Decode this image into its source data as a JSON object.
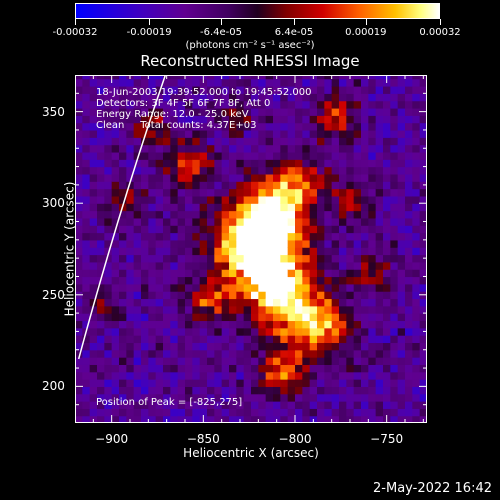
{
  "chart_data": {
    "type": "heatmap",
    "title": "Reconstructed RHESSI Image",
    "xlabel": "Heliocentric X (arcsec)",
    "ylabel": "Heliocentric Y (arcsec)",
    "xlim": [
      -920,
      -728
    ],
    "ylim": [
      180,
      370
    ],
    "x_ticks": [
      -900,
      -850,
      -800,
      -750
    ],
    "y_ticks": [
      200,
      250,
      300,
      350
    ],
    "colorbar": {
      "range": [
        -0.00032,
        0.00032
      ],
      "tick_values": [
        -0.00032,
        -0.00019,
        -6.4e-05,
        6.4e-05,
        0.00019,
        0.00032
      ],
      "tick_labels": [
        "-0.00032",
        "-0.00019",
        "-6.4e-05",
        "6.4e-05",
        "0.00019",
        "0.00032"
      ],
      "units": "(photons cm⁻² s⁻¹ asec⁻²)"
    },
    "peak_position": [
      -825,
      275
    ],
    "total_counts": 4370
  },
  "annotations": {
    "time_range": "18-Jun-2003 19:39:52.000 to 19:45:52.000",
    "detectors": "Detectors: 3F 4F 5F 6F 7F 8F, Att 0",
    "energy_range": "Energy Range: 12.0 - 25.0 keV",
    "clean": "Clean     Total counts: 4.37E+03",
    "peak": "Position of Peak = [-825,275]"
  },
  "footer_timestamp": "2-May-2022 16:42"
}
